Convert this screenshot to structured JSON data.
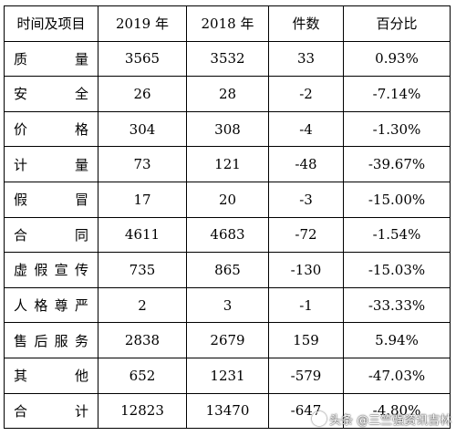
{
  "table": {
    "headers": [
      "时间及项目",
      "2019 年",
      "2018 年",
      "件数",
      "百分比"
    ],
    "rows": [
      [
        "质　　量",
        "3565",
        "3532",
        "33",
        "0.93%"
      ],
      [
        "安　　全",
        "26",
        "28",
        "-2",
        "-7.14%"
      ],
      [
        "价　　格",
        "304",
        "308",
        "-4",
        "-1.30%"
      ],
      [
        "计　　量",
        "73",
        "121",
        "-48",
        "-39.67%"
      ],
      [
        "假　　冒",
        "17",
        "20",
        "-3",
        "-15.00%"
      ],
      [
        "合　　同",
        "4611",
        "4683",
        "-72",
        "-1.54%"
      ],
      [
        "虚假宣传",
        "735",
        "865",
        "-130",
        "-15.03%"
      ],
      [
        "人格尊严",
        "2",
        "3",
        "-1",
        "-33.33%"
      ],
      [
        "售后服务",
        "2838",
        "2679",
        "159",
        "5.94%"
      ],
      [
        "其　　他",
        "652",
        "1231",
        "-579",
        "-47.03%"
      ],
      [
        "合　　计",
        "12823",
        "13470",
        "-647",
        "-4.80%"
      ]
    ]
  },
  "watermark": {
    "text": "头条 @三竺强资讯吉林",
    "icon": "watermark-logo-icon"
  }
}
